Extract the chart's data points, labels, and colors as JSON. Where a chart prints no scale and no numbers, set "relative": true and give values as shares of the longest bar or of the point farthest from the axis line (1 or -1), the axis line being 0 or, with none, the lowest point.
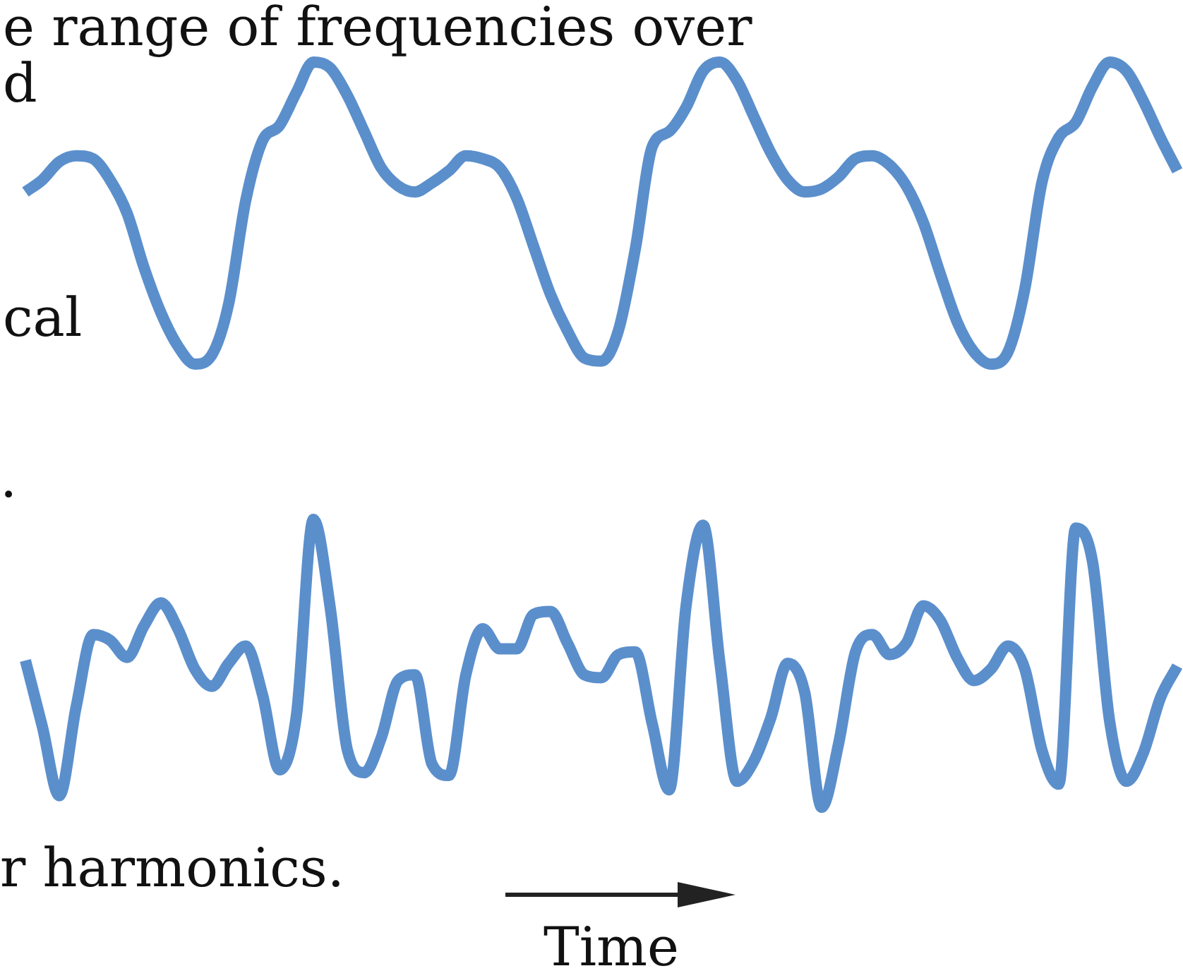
{
  "chart_data": [
    {
      "type": "line",
      "relative": true,
      "categories": [
        null,
        null,
        null,
        null,
        null,
        null,
        null,
        null,
        null,
        null,
        null,
        null,
        null,
        null,
        null,
        null,
        null,
        null,
        null,
        null,
        null,
        null,
        null,
        null,
        null,
        null,
        null,
        null,
        null,
        null,
        null,
        null,
        null,
        null,
        null,
        null,
        null,
        null,
        null,
        null,
        null,
        null,
        null,
        null,
        null,
        null,
        null,
        null,
        null,
        null,
        null,
        null,
        null,
        null,
        null,
        null,
        null,
        null,
        null,
        null,
        null,
        null,
        null,
        null,
        null,
        null,
        null,
        null,
        null
      ],
      "series": [
        {
          "color": "#5b8fcc",
          "values": [
            0.57,
            0.61,
            0.67,
            0.69,
            0.68,
            0.61,
            0.5,
            0.32,
            0.17,
            0.06,
            0.0,
            0.03,
            0.2,
            0.54,
            0.74,
            0.79,
            0.9,
            1.0,
            0.98,
            0.89,
            0.77,
            0.65,
            0.59,
            0.57,
            0.6,
            0.64,
            0.69,
            0.68,
            0.65,
            0.55,
            0.39,
            0.23,
            0.11,
            0.02,
            0.01,
            0.11,
            0.38,
            0.72,
            0.77,
            0.85,
            0.97,
            1.0,
            0.94,
            0.82,
            0.7,
            0.61,
            0.57,
            0.58,
            0.62,
            0.68,
            0.69,
            0.66,
            0.59,
            0.47,
            0.3,
            0.14,
            0.04,
            0.0,
            0.04,
            0.25,
            0.6,
            0.75,
            0.8,
            0.92,
            1.0,
            0.97,
            0.87,
            0.75,
            0.64
          ]
        }
      ],
      "annotations": [
        "e range of frequencies over",
        "d",
        "cal"
      ]
    },
    {
      "type": "line",
      "relative": true,
      "xlabel": "Time",
      "categories": [
        null,
        null,
        null,
        null,
        null,
        null,
        null,
        null,
        null,
        null,
        null,
        null,
        null,
        null,
        null,
        null,
        null,
        null,
        null,
        null,
        null,
        null,
        null,
        null,
        null,
        null,
        null,
        null,
        null,
        null,
        null,
        null,
        null,
        null,
        null,
        null,
        null,
        null,
        null,
        null,
        null,
        null,
        null,
        null,
        null,
        null,
        null,
        null,
        null,
        null,
        null,
        null,
        null,
        null,
        null,
        null,
        null,
        null,
        null,
        null,
        null,
        null,
        null,
        null,
        null,
        null,
        null,
        null,
        null
      ],
      "series": [
        {
          "color": "#5b8fcc",
          "values": [
            0.51,
            0.28,
            0.04,
            0.35,
            0.6,
            0.58,
            0.52,
            0.63,
            0.71,
            0.62,
            0.48,
            0.42,
            0.5,
            0.56,
            0.39,
            0.13,
            0.32,
            1.0,
            0.69,
            0.2,
            0.12,
            0.24,
            0.44,
            0.46,
            0.15,
            0.11,
            0.46,
            0.62,
            0.55,
            0.55,
            0.67,
            0.68,
            0.57,
            0.46,
            0.45,
            0.53,
            0.54,
            0.29,
            0.06,
            0.7,
            0.98,
            0.5,
            0.09,
            0.16,
            0.31,
            0.5,
            0.4,
            0.0,
            0.22,
            0.54,
            0.6,
            0.53,
            0.57,
            0.7,
            0.65,
            0.52,
            0.44,
            0.48,
            0.56,
            0.48,
            0.2,
            0.08,
            0.97,
            0.85,
            0.3,
            0.09,
            0.19,
            0.38,
            0.49
          ]
        }
      ],
      "annotations": [
        ".",
        "r harmonics."
      ]
    }
  ]
}
